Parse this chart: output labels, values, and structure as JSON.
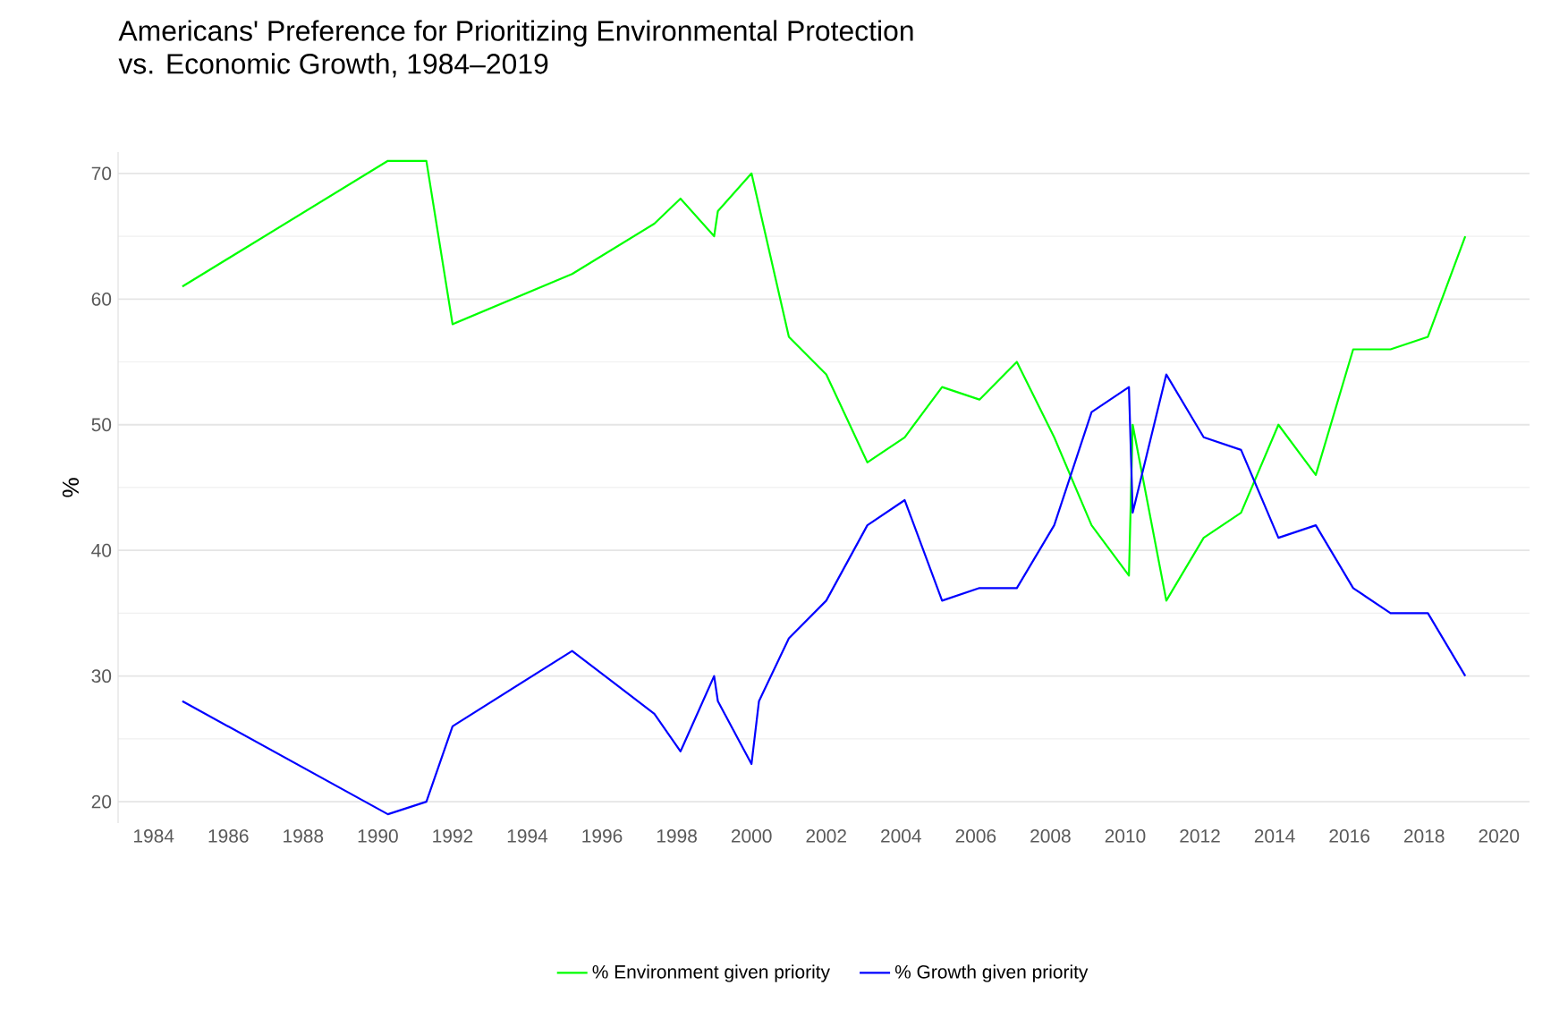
{
  "chart_data": {
    "type": "line",
    "title": "Americans' Preference for Prioritizing Environmental Protection\nvs. Economic Growth, 1984–2019",
    "ylabel": "%",
    "xlim": [
      1983.05,
      2020.82
    ],
    "ylim": [
      18.3,
      71.7
    ],
    "xticks": [
      1984,
      1986,
      1988,
      1990,
      1992,
      1994,
      1996,
      1998,
      2000,
      2002,
      2004,
      2006,
      2008,
      2010,
      2012,
      2014,
      2016,
      2018,
      2020
    ],
    "yticks": [
      20,
      30,
      40,
      50,
      60,
      70
    ],
    "grid": "y",
    "legend": "bottom",
    "marker": "none",
    "line_style": "solid",
    "series": [
      {
        "name": "% Environment given priority",
        "color": "#00ff00",
        "x": [
          1984.77,
          1990.27,
          1991.3,
          1992.0,
          1995.2,
          1997.4,
          1998.1,
          1999.0,
          1999.1,
          2000.0,
          2001.0,
          2002.0,
          2003.1,
          2004.1,
          2005.1,
          2006.1,
          2007.1,
          2008.1,
          2009.1,
          2010.1,
          2010.2,
          2011.1,
          2012.1,
          2013.1,
          2014.1,
          2015.1,
          2016.1,
          2017.1,
          2018.1,
          2019.1
        ],
        "values": [
          61,
          71,
          71,
          58,
          62,
          66,
          68,
          65,
          67,
          70,
          57,
          54,
          47,
          49,
          53,
          52,
          55,
          49,
          42,
          38,
          50,
          36,
          41,
          43,
          50,
          46,
          56,
          56,
          57,
          65
        ]
      },
      {
        "name": "% Growth given priority",
        "color": "#0000ff",
        "x": [
          1984.77,
          1990.27,
          1991.3,
          1992.0,
          1995.2,
          1997.4,
          1998.1,
          1999.0,
          1999.1,
          2000.0,
          2000.2,
          2001.0,
          2002.0,
          2003.1,
          2004.1,
          2005.1,
          2006.1,
          2007.1,
          2008.1,
          2009.1,
          2010.1,
          2010.2,
          2011.1,
          2012.1,
          2013.1,
          2014.1,
          2015.1,
          2016.1,
          2017.1,
          2018.1,
          2019.1
        ],
        "values": [
          28,
          19,
          20,
          26,
          32,
          27,
          24,
          30,
          28,
          23,
          28,
          33,
          36,
          42,
          44,
          36,
          37,
          37,
          42,
          51,
          53,
          43,
          54,
          49,
          48,
          41,
          42,
          37,
          35,
          35,
          30
        ]
      }
    ]
  }
}
